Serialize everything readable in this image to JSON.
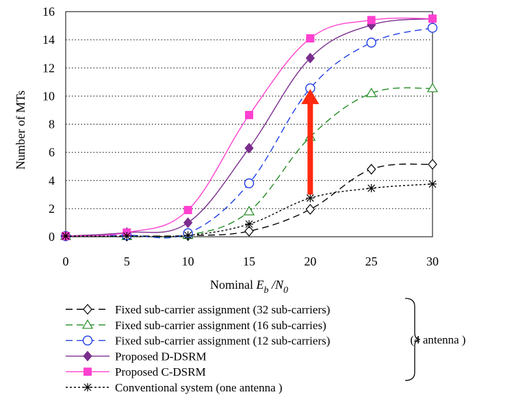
{
  "chart_data": {
    "type": "line",
    "xlabel_prefix": "Nominal ",
    "xlabel_var1": "E",
    "xlabel_sub1": "b",
    "xlabel_slash": " /",
    "xlabel_var2": "N",
    "xlabel_sub2": "0",
    "ylabel": "Number of MTs",
    "x": [
      0,
      5,
      10,
      15,
      20,
      25,
      30
    ],
    "xlim": [
      0,
      30
    ],
    "ylim": [
      0,
      16
    ],
    "xticks": [
      "0",
      "5",
      "10",
      "15",
      "20",
      "25",
      "30"
    ],
    "yticks": [
      "0",
      "2",
      "4",
      "6",
      "8",
      "10",
      "12",
      "14",
      "16"
    ],
    "grid": "horizontal dotted",
    "legend_position": "below",
    "series": [
      {
        "name": "Fixed sub-carrier assignment (32 sub-carriers)",
        "values": [
          0.05,
          0.05,
          0.08,
          0.4,
          1.95,
          4.8,
          5.15
        ],
        "color": "#000000",
        "dash": "long-dash",
        "marker": "diamond-open"
      },
      {
        "name": "Fixed sub-carrier assignment (16 sub-carries)",
        "values": [
          0.05,
          0.05,
          0.12,
          1.8,
          7.1,
          10.2,
          10.55
        ],
        "color": "#228B22",
        "dash": "long-dash",
        "marker": "triangle-open"
      },
      {
        "name": "Fixed sub-carrier assignment (12 sub-carriers)",
        "values": [
          0.05,
          0.1,
          0.25,
          3.8,
          10.55,
          13.8,
          14.85
        ],
        "color": "#1E3CE6",
        "dash": "long-dash",
        "marker": "circle-open"
      },
      {
        "name": "Proposed D-DSRM",
        "values": [
          0.05,
          0.3,
          1.0,
          6.3,
          12.7,
          15.05,
          15.5
        ],
        "color": "#7B2D8E",
        "dash": "solid",
        "marker": "diamond-filled"
      },
      {
        "name": "Proposed C-DSRM",
        "values": [
          0.05,
          0.3,
          1.9,
          8.65,
          14.1,
          15.4,
          15.5
        ],
        "color": "#FF40D0",
        "dash": "solid",
        "marker": "square-filled"
      },
      {
        "name": "Conventional system  (one antenna )",
        "values": [
          0.05,
          0.05,
          0.1,
          0.9,
          2.75,
          3.45,
          3.75
        ],
        "color": "#000000",
        "dash": "dotted",
        "marker": "asterisk"
      }
    ],
    "bracket_label": "(4 antenna )",
    "annotation": {
      "type": "arrow",
      "color": "#FF2A10",
      "x": 20,
      "from_y": 3.0,
      "to_y": 10.5
    }
  }
}
